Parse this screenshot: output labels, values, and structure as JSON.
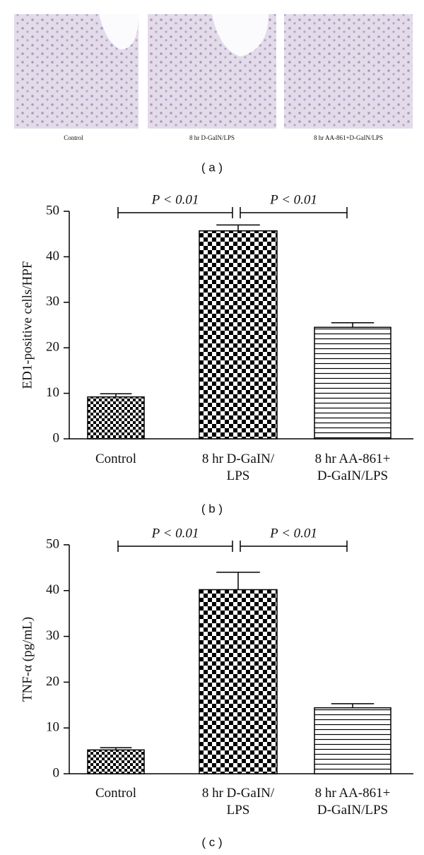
{
  "panel_a": {
    "captions": [
      "Control",
      "8 hr D-GaIN/LPS",
      "8 hr AA-861+D-GaIN/LPS"
    ],
    "label": "( a )"
  },
  "chart_data": [
    {
      "type": "bar",
      "panel_label": "( b )",
      "y_label": "ED1-positive cells/HPF",
      "categories": [
        "Control",
        "8 hr D-GaIN/\nLPS",
        "8 hr AA-861+\nD-GaIN/LPS"
      ],
      "values": [
        9.2,
        45.7,
        24.5
      ],
      "errors": [
        0.7,
        1.3,
        1.0
      ],
      "patterns": [
        "checker-small",
        "checker-large",
        "hlines"
      ],
      "color": "#000000",
      "annotations": [
        "P < 0.01",
        "P < 0.01"
      ],
      "ylim": [
        0,
        50
      ],
      "yticks": [
        0,
        10,
        20,
        30,
        40,
        50
      ]
    },
    {
      "type": "bar",
      "panel_label": "( c )",
      "y_label": "TNF-α (pg/mL)",
      "categories": [
        "Control",
        "8 hr D-GaIN/\nLPS",
        "8 hr AA-861+\nD-GaIN/LPS"
      ],
      "values": [
        5.2,
        40.2,
        14.4
      ],
      "errors": [
        0.5,
        3.8,
        0.9
      ],
      "patterns": [
        "checker-small",
        "checker-large",
        "hlines"
      ],
      "color": "#000000",
      "annotations": [
        "P < 0.01",
        "P < 0.01"
      ],
      "ylim": [
        0,
        50
      ],
      "yticks": [
        0,
        10,
        20,
        30,
        40,
        50
      ]
    }
  ]
}
